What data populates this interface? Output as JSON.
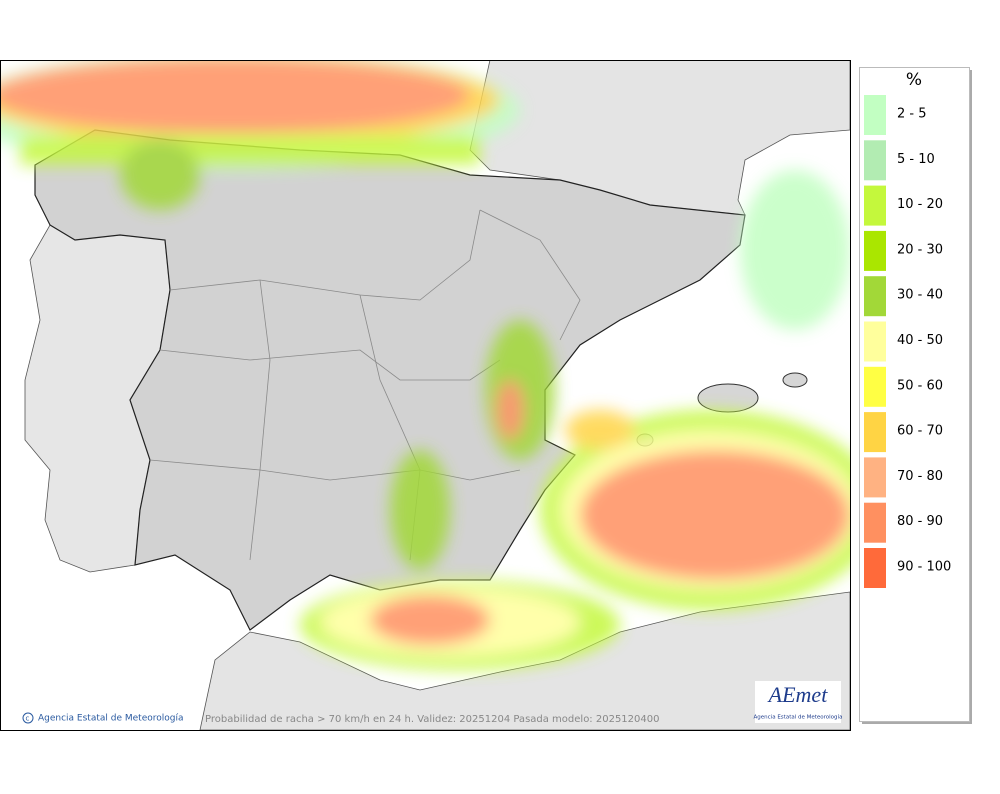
{
  "legend": {
    "title": "%",
    "items": [
      {
        "label": "2 - 5",
        "color": "#c2ffc2"
      },
      {
        "label": "5 - 10",
        "color": "#b2ecb2"
      },
      {
        "label": "10 - 20",
        "color": "#c4f83c"
      },
      {
        "label": "20 - 30",
        "color": "#aae600"
      },
      {
        "label": "30 - 40",
        "color": "#a2d838"
      },
      {
        "label": "40 - 50",
        "color": "#ffff9c"
      },
      {
        "label": "50 - 60",
        "color": "#ffff44"
      },
      {
        "label": "60 - 70",
        "color": "#ffd444"
      },
      {
        "label": "70 - 80",
        "color": "#ffb282"
      },
      {
        "label": "80 - 90",
        "color": "#ff9060"
      },
      {
        "label": "90 - 100",
        "color": "#ff6a3a"
      }
    ]
  },
  "footer": {
    "credit": "Agencia Estatal de Meteorología",
    "caption": "Probabilidad de racha > 70 km/h en 24 h. Validez: 20251204 Pasada modelo: 2025120400"
  },
  "logo": {
    "name": "AEmet",
    "subtitle": "Agencia Estatal de Meteorología"
  }
}
